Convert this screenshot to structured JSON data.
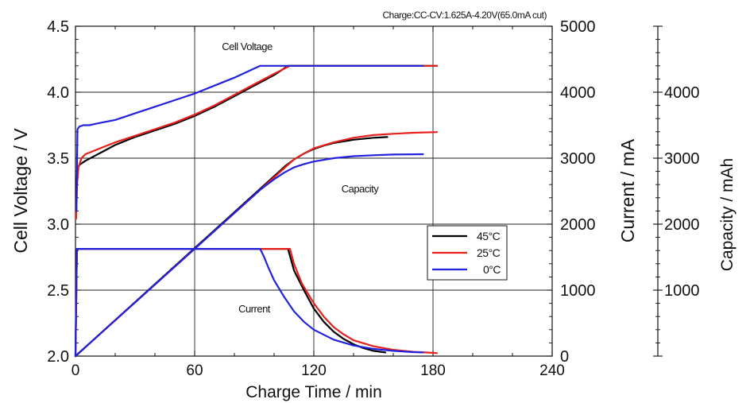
{
  "chart_data": {
    "type": "line",
    "title": "Charge:CC-CV:1.625A-4.20V(65.0mA cut)",
    "xlabel": "Charge  Time  /  min",
    "ylabel_left": "Cell  Voltage  /  V",
    "ylabel_right_current": "Current  /  mA",
    "ylabel_right_capacity": "Capacity  /  mAh",
    "xlim": [
      0,
      240
    ],
    "ylim_voltage": [
      2.0,
      4.5
    ],
    "ylim_current": [
      0,
      5000
    ],
    "ylim_capacity": [
      0,
      5000
    ],
    "x_ticks": [
      "0",
      "60",
      "120",
      "180",
      "240"
    ],
    "voltage_ticks": [
      "2.0",
      "2.5",
      "3.0",
      "3.5",
      "4.0",
      "4.5"
    ],
    "current_ticks": [
      "0",
      "1000",
      "2000",
      "3000",
      "4000",
      "5000"
    ],
    "capacity_ticks": [
      "1000",
      "2000",
      "3000",
      "4000"
    ],
    "grid": true,
    "annotations": {
      "voltage": "Cell Voltage",
      "capacity": "Capacity",
      "current": "Current"
    },
    "legend": {
      "placement": "center-right",
      "entries": [
        "45°C",
        "25°C",
        "0°C"
      ]
    },
    "colors": {
      "45°C": "#000000",
      "25°C": "#e8201c",
      "0°C": "#2222dd"
    },
    "series": [
      {
        "name": "45°C",
        "quantity": "voltage",
        "points": [
          [
            0.5,
            3.3
          ],
          [
            1,
            3.42
          ],
          [
            2,
            3.45
          ],
          [
            5,
            3.48
          ],
          [
            10,
            3.52
          ],
          [
            20,
            3.6
          ],
          [
            30,
            3.66
          ],
          [
            40,
            3.71
          ],
          [
            50,
            3.76
          ],
          [
            60,
            3.82
          ],
          [
            70,
            3.89
          ],
          [
            80,
            3.97
          ],
          [
            90,
            4.05
          ],
          [
            100,
            4.13
          ],
          [
            107,
            4.2
          ],
          [
            182,
            4.2
          ]
        ]
      },
      {
        "name": "25°C",
        "quantity": "voltage",
        "points": [
          [
            0.3,
            3.04
          ],
          [
            0.8,
            3.3
          ],
          [
            1.5,
            3.43
          ],
          [
            3,
            3.5
          ],
          [
            5,
            3.53
          ],
          [
            10,
            3.56
          ],
          [
            20,
            3.62
          ],
          [
            30,
            3.67
          ],
          [
            40,
            3.72
          ],
          [
            50,
            3.77
          ],
          [
            60,
            3.83
          ],
          [
            70,
            3.9
          ],
          [
            80,
            3.98
          ],
          [
            90,
            4.06
          ],
          [
            100,
            4.14
          ],
          [
            108,
            4.2
          ],
          [
            182,
            4.2
          ]
        ]
      },
      {
        "name": "0°C",
        "quantity": "voltage",
        "points": [
          [
            0.5,
            3.1
          ],
          [
            1,
            3.72
          ],
          [
            2,
            3.74
          ],
          [
            4,
            3.75
          ],
          [
            7,
            3.75
          ],
          [
            10,
            3.76
          ],
          [
            20,
            3.79
          ],
          [
            30,
            3.84
          ],
          [
            40,
            3.89
          ],
          [
            50,
            3.94
          ],
          [
            60,
            3.99
          ],
          [
            70,
            4.05
          ],
          [
            80,
            4.11
          ],
          [
            93,
            4.2
          ],
          [
            175,
            4.2
          ]
        ]
      },
      {
        "name": "45°C",
        "quantity": "current",
        "points": [
          [
            0,
            0
          ],
          [
            0.7,
            1625
          ],
          [
            107,
            1625
          ],
          [
            110,
            1300
          ],
          [
            115,
            1000
          ],
          [
            120,
            720
          ],
          [
            125,
            520
          ],
          [
            130,
            370
          ],
          [
            135,
            260
          ],
          [
            140,
            180
          ],
          [
            145,
            120
          ],
          [
            150,
            80
          ],
          [
            156,
            55
          ]
        ]
      },
      {
        "name": "25°C",
        "quantity": "current",
        "points": [
          [
            0,
            0
          ],
          [
            0.7,
            1625
          ],
          [
            108,
            1625
          ],
          [
            110,
            1400
          ],
          [
            114,
            1100
          ],
          [
            120,
            800
          ],
          [
            125,
            600
          ],
          [
            130,
            440
          ],
          [
            135,
            330
          ],
          [
            140,
            240
          ],
          [
            150,
            150
          ],
          [
            160,
            95
          ],
          [
            170,
            65
          ],
          [
            180,
            50
          ],
          [
            182,
            45
          ]
        ]
      },
      {
        "name": "0°C",
        "quantity": "current",
        "points": [
          [
            0,
            0
          ],
          [
            0.7,
            1625
          ],
          [
            93,
            1625
          ],
          [
            95,
            1500
          ],
          [
            97,
            1350
          ],
          [
            100,
            1150
          ],
          [
            105,
            900
          ],
          [
            110,
            680
          ],
          [
            115,
            520
          ],
          [
            120,
            400
          ],
          [
            130,
            250
          ],
          [
            140,
            160
          ],
          [
            150,
            110
          ],
          [
            160,
            80
          ],
          [
            170,
            60
          ],
          [
            175,
            55
          ]
        ]
      },
      {
        "name": "45°C",
        "quantity": "capacity",
        "points": [
          [
            0,
            0
          ],
          [
            106,
            2890
          ],
          [
            110,
            2980
          ],
          [
            115,
            3070
          ],
          [
            120,
            3140
          ],
          [
            125,
            3190
          ],
          [
            130,
            3230
          ],
          [
            140,
            3280
          ],
          [
            150,
            3310
          ],
          [
            157,
            3320
          ]
        ]
      },
      {
        "name": "25°C",
        "quantity": "capacity",
        "points": [
          [
            0,
            0
          ],
          [
            107,
            2900
          ],
          [
            110,
            2980
          ],
          [
            115,
            3070
          ],
          [
            120,
            3150
          ],
          [
            130,
            3240
          ],
          [
            140,
            3310
          ],
          [
            150,
            3350
          ],
          [
            160,
            3370
          ],
          [
            170,
            3385
          ],
          [
            182,
            3395
          ]
        ]
      },
      {
        "name": "0°C",
        "quantity": "capacity",
        "points": [
          [
            0,
            0
          ],
          [
            93,
            2520
          ],
          [
            96,
            2590
          ],
          [
            100,
            2680
          ],
          [
            105,
            2780
          ],
          [
            110,
            2860
          ],
          [
            115,
            2910
          ],
          [
            120,
            2950
          ],
          [
            130,
            3000
          ],
          [
            140,
            3030
          ],
          [
            150,
            3045
          ],
          [
            160,
            3055
          ],
          [
            175,
            3060
          ]
        ]
      }
    ]
  }
}
